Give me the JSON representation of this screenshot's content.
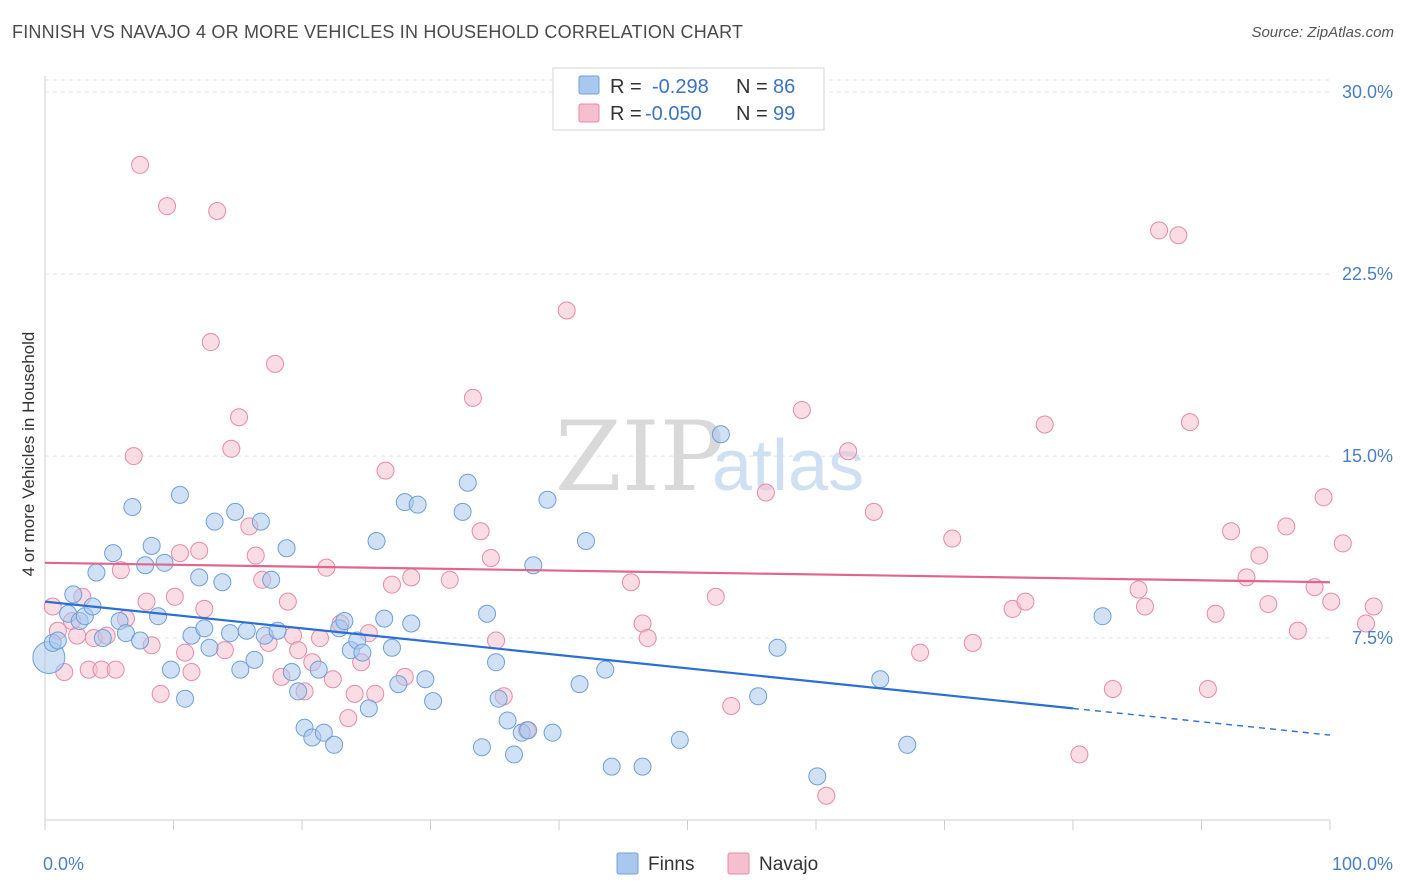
{
  "title": "FINNISH VS NAVAJO 4 OR MORE VEHICLES IN HOUSEHOLD CORRELATION CHART",
  "source": "Source: ZipAtlas.com",
  "watermark": {
    "zip": "ZIP",
    "atlas": "atlas"
  },
  "colors": {
    "finns_fill": "#a9c8ef",
    "finns_stroke": "#6f9fd8",
    "finns_line": "#2a6fd1",
    "navajo_fill": "#f6bfd0",
    "navajo_stroke": "#e88aa8",
    "navajo_line": "#e0668f",
    "grid": "#e3e3e3",
    "tick_text": "#4a7fc1"
  },
  "legend": {
    "finns": {
      "r_label": "R =",
      "r_value": "-0.298",
      "n_label": "N =",
      "n_value": "86"
    },
    "navajo": {
      "r_label": "R =",
      "r_value": "-0.050",
      "n_label": "N =",
      "n_value": "99"
    }
  },
  "chart_data": {
    "type": "scatter",
    "title": "FINNISH VS NAVAJO 4 OR MORE VEHICLES IN HOUSEHOLD CORRELATION CHART",
    "xlabel": "",
    "ylabel": "4 or more Vehicles in Household",
    "xlim": [
      0,
      100
    ],
    "ylim": [
      0,
      30.5
    ],
    "x_tick_labels": [
      "0.0%",
      "100.0%"
    ],
    "y_ticks": [
      7.5,
      15.0,
      22.5,
      30.0
    ],
    "y_tick_labels": [
      "7.5%",
      "15.0%",
      "22.5%",
      "30.0%"
    ],
    "grid": true,
    "legend_position": "top-center",
    "series": [
      {
        "name": "Finns",
        "trend": {
          "x0": 0,
          "y0": 9.0,
          "x1": 80,
          "y1": 4.6,
          "dash_x1": 100,
          "dash_y1": 3.5
        },
        "points": [
          [
            0.3,
            6.7
          ],
          [
            0.6,
            7.3
          ],
          [
            1.0,
            7.4
          ],
          [
            1.8,
            8.5
          ],
          [
            2.2,
            9.3
          ],
          [
            2.7,
            8.2
          ],
          [
            3.1,
            8.4
          ],
          [
            3.7,
            8.8
          ],
          [
            4.0,
            10.2
          ],
          [
            4.5,
            7.5
          ],
          [
            5.3,
            11.0
          ],
          [
            5.8,
            8.2
          ],
          [
            6.3,
            7.7
          ],
          [
            6.8,
            12.9
          ],
          [
            7.4,
            7.4
          ],
          [
            7.8,
            10.5
          ],
          [
            8.3,
            11.3
          ],
          [
            8.8,
            8.4
          ],
          [
            9.3,
            10.6
          ],
          [
            9.8,
            6.2
          ],
          [
            10.5,
            13.4
          ],
          [
            10.9,
            5.0
          ],
          [
            11.4,
            7.6
          ],
          [
            12.0,
            10.0
          ],
          [
            12.4,
            7.9
          ],
          [
            12.8,
            7.1
          ],
          [
            13.2,
            12.3
          ],
          [
            13.8,
            9.8
          ],
          [
            14.4,
            7.7
          ],
          [
            14.8,
            12.7
          ],
          [
            15.2,
            6.2
          ],
          [
            15.7,
            7.8
          ],
          [
            16.3,
            6.6
          ],
          [
            16.8,
            12.3
          ],
          [
            17.1,
            7.6
          ],
          [
            17.6,
            9.9
          ],
          [
            18.1,
            7.8
          ],
          [
            18.8,
            11.2
          ],
          [
            19.2,
            6.1
          ],
          [
            19.7,
            5.3
          ],
          [
            20.2,
            3.8
          ],
          [
            20.8,
            3.4
          ],
          [
            21.3,
            6.2
          ],
          [
            21.7,
            3.6
          ],
          [
            22.5,
            3.1
          ],
          [
            22.9,
            7.9
          ],
          [
            23.3,
            8.2
          ],
          [
            23.8,
            7.0
          ],
          [
            24.3,
            7.4
          ],
          [
            24.7,
            6.9
          ],
          [
            25.2,
            4.6
          ],
          [
            25.8,
            11.5
          ],
          [
            26.4,
            8.3
          ],
          [
            27.0,
            7.1
          ],
          [
            27.5,
            5.6
          ],
          [
            28.0,
            13.1
          ],
          [
            28.5,
            8.1
          ],
          [
            29.0,
            13.0
          ],
          [
            29.6,
            5.8
          ],
          [
            30.2,
            4.9
          ],
          [
            32.5,
            12.7
          ],
          [
            32.9,
            13.9
          ],
          [
            34.0,
            3.0
          ],
          [
            34.4,
            8.5
          ],
          [
            35.1,
            6.5
          ],
          [
            35.3,
            5.0
          ],
          [
            36.0,
            4.1
          ],
          [
            36.5,
            2.7
          ],
          [
            37.1,
            3.6
          ],
          [
            37.6,
            3.7
          ],
          [
            38.0,
            10.5
          ],
          [
            39.1,
            13.2
          ],
          [
            39.5,
            3.6
          ],
          [
            41.6,
            5.6
          ],
          [
            42.1,
            11.5
          ],
          [
            43.6,
            6.2
          ],
          [
            44.1,
            2.2
          ],
          [
            46.5,
            2.2
          ],
          [
            49.4,
            3.3
          ],
          [
            52.6,
            15.9
          ],
          [
            55.5,
            5.1
          ],
          [
            57.0,
            7.1
          ],
          [
            60.1,
            1.8
          ],
          [
            65.0,
            5.8
          ],
          [
            67.1,
            3.1
          ],
          [
            82.3,
            8.4
          ]
        ]
      },
      {
        "name": "Navajo",
        "trend": {
          "x0": 0,
          "y0": 10.6,
          "x1": 100,
          "y1": 9.8
        },
        "points": [
          [
            0.6,
            8.8
          ],
          [
            1.0,
            7.8
          ],
          [
            1.5,
            6.1
          ],
          [
            2.1,
            8.2
          ],
          [
            2.5,
            7.6
          ],
          [
            2.9,
            9.2
          ],
          [
            3.4,
            6.2
          ],
          [
            3.8,
            7.5
          ],
          [
            4.4,
            6.2
          ],
          [
            4.8,
            7.6
          ],
          [
            5.5,
            6.2
          ],
          [
            5.9,
            10.3
          ],
          [
            6.3,
            8.3
          ],
          [
            6.9,
            15.0
          ],
          [
            7.4,
            27.0
          ],
          [
            7.9,
            9.0
          ],
          [
            8.3,
            7.2
          ],
          [
            9.0,
            5.2
          ],
          [
            9.5,
            25.3
          ],
          [
            10.1,
            9.2
          ],
          [
            10.5,
            11.0
          ],
          [
            10.9,
            6.9
          ],
          [
            11.4,
            6.1
          ],
          [
            12.0,
            11.1
          ],
          [
            12.4,
            8.7
          ],
          [
            12.9,
            19.7
          ],
          [
            13.4,
            25.1
          ],
          [
            14.0,
            7.0
          ],
          [
            14.5,
            15.3
          ],
          [
            15.1,
            16.6
          ],
          [
            15.9,
            12.1
          ],
          [
            16.4,
            10.9
          ],
          [
            16.9,
            9.9
          ],
          [
            17.4,
            7.3
          ],
          [
            17.9,
            18.8
          ],
          [
            18.4,
            5.9
          ],
          [
            18.9,
            9.0
          ],
          [
            19.3,
            7.6
          ],
          [
            19.7,
            7.0
          ],
          [
            20.2,
            5.3
          ],
          [
            20.8,
            6.5
          ],
          [
            21.4,
            7.5
          ],
          [
            21.9,
            10.4
          ],
          [
            22.4,
            5.8
          ],
          [
            23.0,
            8.1
          ],
          [
            23.6,
            4.2
          ],
          [
            24.1,
            5.2
          ],
          [
            24.6,
            6.5
          ],
          [
            25.2,
            7.7
          ],
          [
            25.7,
            5.2
          ],
          [
            26.5,
            14.4
          ],
          [
            27.0,
            9.7
          ],
          [
            28.0,
            5.9
          ],
          [
            28.5,
            10.0
          ],
          [
            31.5,
            9.9
          ],
          [
            33.3,
            17.4
          ],
          [
            33.9,
            11.9
          ],
          [
            34.7,
            10.8
          ],
          [
            35.1,
            7.4
          ],
          [
            35.7,
            5.1
          ],
          [
            37.5,
            3.7
          ],
          [
            40.6,
            21.0
          ],
          [
            45.6,
            9.8
          ],
          [
            46.5,
            8.1
          ],
          [
            46.9,
            7.5
          ],
          [
            52.2,
            9.2
          ],
          [
            53.4,
            4.7
          ],
          [
            56.1,
            13.5
          ],
          [
            58.9,
            16.9
          ],
          [
            60.8,
            1.0
          ],
          [
            62.5,
            15.2
          ],
          [
            64.5,
            12.7
          ],
          [
            68.1,
            6.9
          ],
          [
            70.6,
            11.6
          ],
          [
            72.2,
            7.3
          ],
          [
            75.3,
            8.7
          ],
          [
            76.3,
            9.0
          ],
          [
            77.8,
            16.3
          ],
          [
            80.5,
            2.7
          ],
          [
            83.1,
            5.4
          ],
          [
            85.1,
            9.5
          ],
          [
            85.6,
            8.8
          ],
          [
            86.7,
            24.3
          ],
          [
            88.2,
            24.1
          ],
          [
            89.1,
            16.4
          ],
          [
            90.5,
            5.4
          ],
          [
            91.1,
            8.5
          ],
          [
            92.3,
            11.9
          ],
          [
            93.5,
            10.0
          ],
          [
            94.5,
            10.9
          ],
          [
            95.2,
            8.9
          ],
          [
            96.6,
            12.1
          ],
          [
            97.5,
            7.8
          ],
          [
            98.8,
            9.6
          ],
          [
            99.5,
            13.3
          ],
          [
            100.1,
            9.0
          ],
          [
            101.0,
            11.4
          ],
          [
            102.8,
            8.1
          ],
          [
            103.4,
            8.8
          ]
        ]
      }
    ]
  },
  "bottom_legend": {
    "finns": "Finns",
    "navajo": "Navajo"
  }
}
